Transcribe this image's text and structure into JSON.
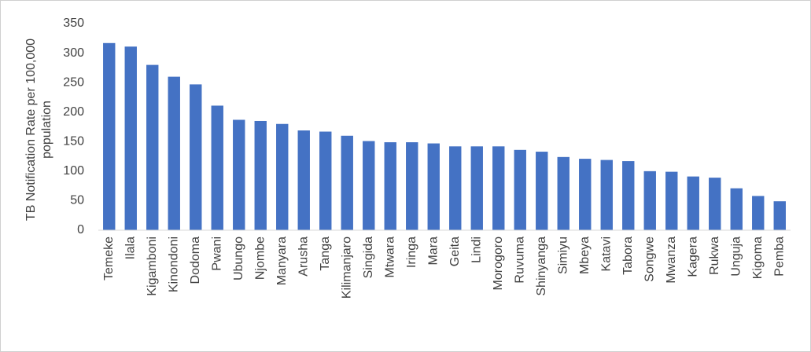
{
  "chart_data": {
    "type": "bar",
    "ylabel": [
      "TB Notification  Rate per 100,000",
      "population"
    ],
    "categories": [
      "Temeke",
      "Ilala",
      "Kigamboni",
      "Kinondoni",
      "Dodoma",
      "Pwani",
      "Ubungo",
      "Njombe",
      "Manyara",
      "Arusha",
      "Tanga",
      "Kilimanjaro",
      "Singida",
      "Mtwara",
      "Iringa",
      "Mara",
      "Geita",
      "Lindi",
      "Morogoro",
      "Ruvuma",
      "Shinyanga",
      "Simiyu",
      "Mbeya",
      "Katavi",
      "Tabora",
      "Songwe",
      "Mwanza",
      "Kagera",
      "Rukwa",
      "Unguja",
      "Kigoma",
      "Pemba"
    ],
    "values": [
      317,
      311,
      280,
      260,
      247,
      211,
      187,
      185,
      180,
      169,
      167,
      160,
      151,
      149,
      149,
      147,
      142,
      142,
      142,
      136,
      133,
      124,
      121,
      119,
      117,
      100,
      99,
      91,
      89,
      71,
      58,
      49
    ],
    "color": "#4472c4",
    "ylim": [
      0,
      350
    ],
    "yticks": [
      0,
      50,
      100,
      150,
      200,
      250,
      300,
      350
    ],
    "grid": false
  }
}
